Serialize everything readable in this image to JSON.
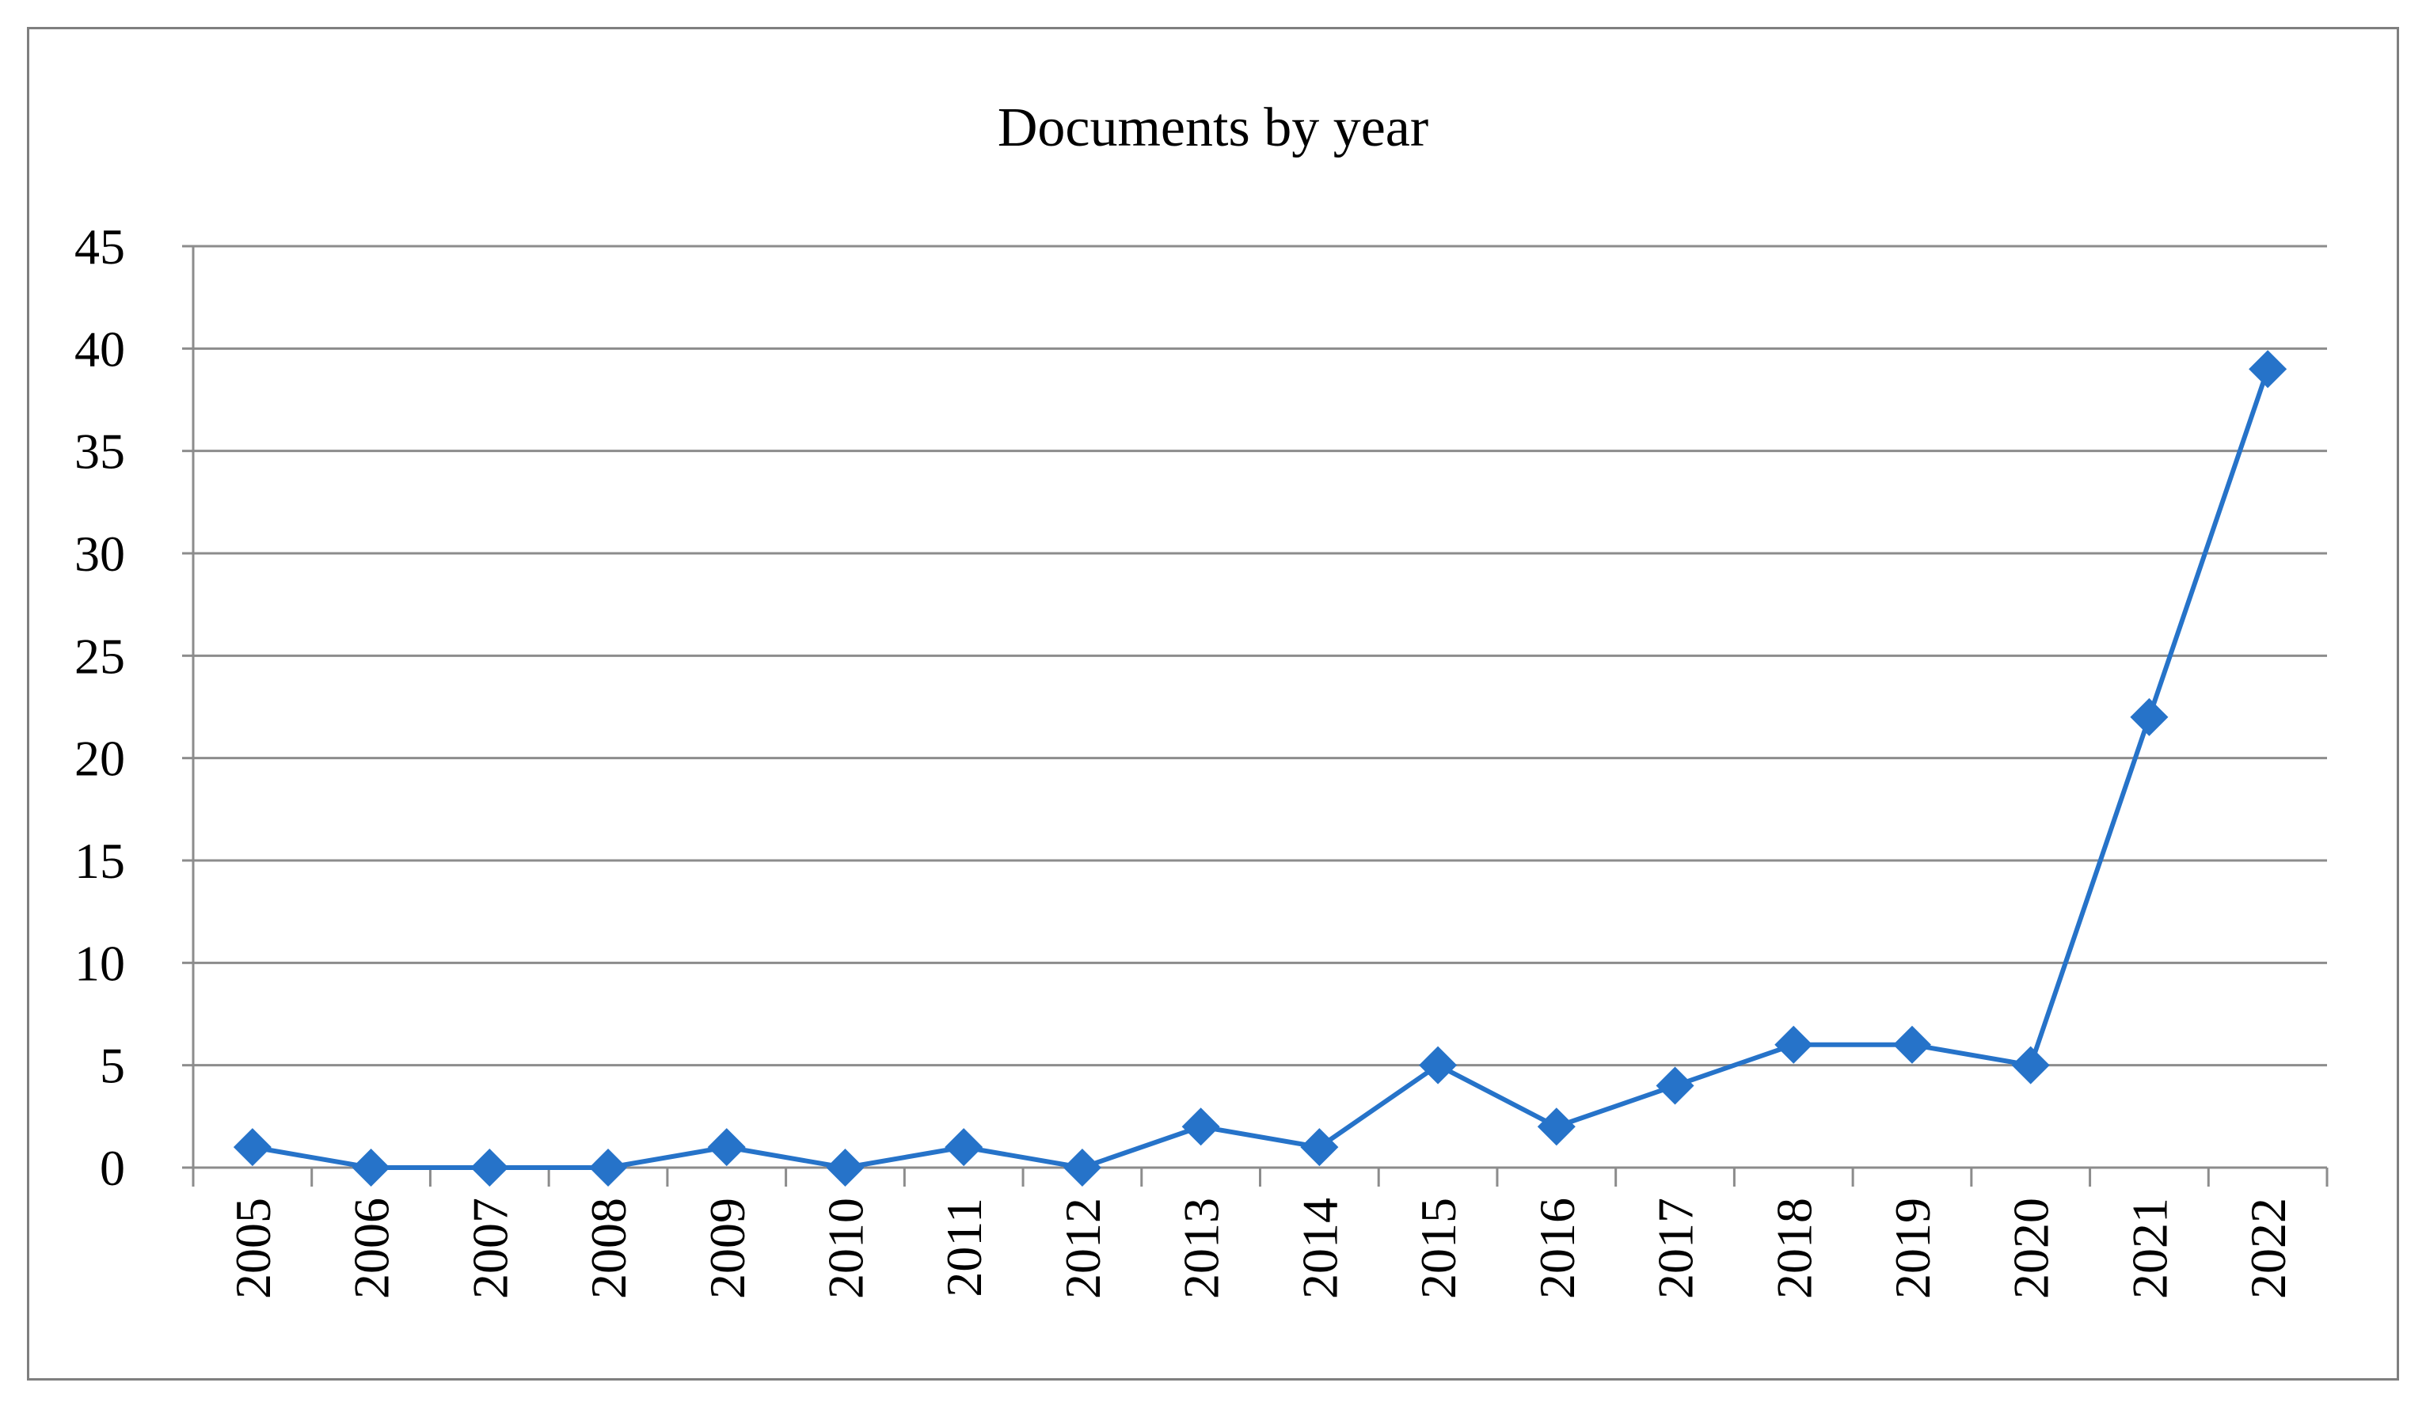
{
  "chart_data": {
    "type": "line",
    "title": "Documents by year",
    "xlabel": "",
    "ylabel": "",
    "categories": [
      "2005",
      "2006",
      "2007",
      "2008",
      "2009",
      "2010",
      "2011",
      "2012",
      "2013",
      "2014",
      "2015",
      "2016",
      "2017",
      "2018",
      "2019",
      "2020",
      "2021",
      "2022"
    ],
    "series": [
      {
        "values": [
          1,
          0,
          0,
          0,
          1,
          0,
          1,
          0,
          2,
          1,
          5,
          2,
          4,
          6,
          6,
          5,
          22,
          39
        ],
        "color": "#2673C9",
        "marker": "diamond"
      }
    ],
    "ylim": [
      0,
      45
    ],
    "yticks": [
      "0",
      "5",
      "10",
      "15",
      "20",
      "25",
      "30",
      "35",
      "40",
      "45"
    ],
    "grid": true,
    "legend": "none"
  }
}
